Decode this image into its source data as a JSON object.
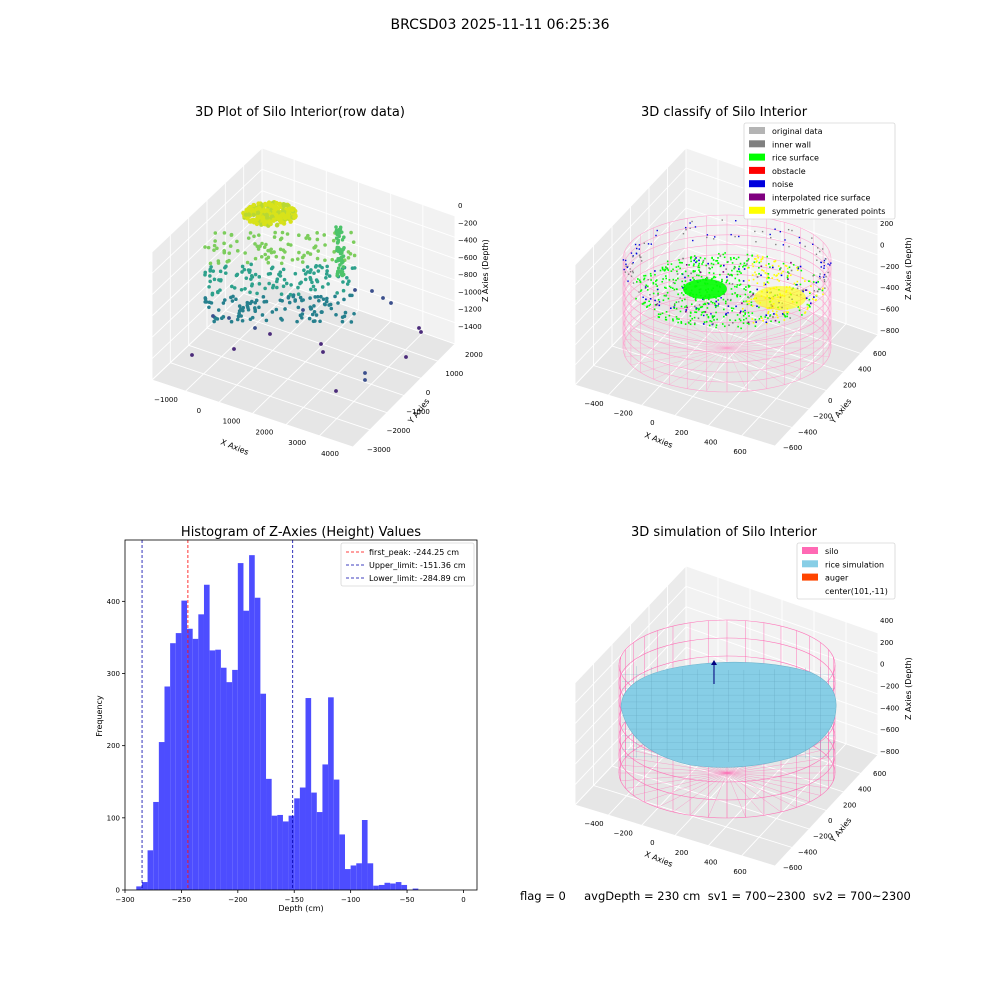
{
  "figure": {
    "suptitle": "BRCSD03 2025-11-11 06:25:36",
    "status": "flag = 0     avgDepth = 230 cm  sv1 = 700~2300  sv2 = 700~2300"
  },
  "chart_data": [
    {
      "type": "scatter",
      "title": "3D Plot of Silo Interior(row data)",
      "xlabel": "X Axies",
      "ylabel": "Y Axies",
      "zlabel": "Z Axies (Depth)",
      "x_ticks": [
        "−1000",
        "0",
        "1000",
        "2000",
        "3000",
        "4000"
      ],
      "y_ticks": [
        "−3000",
        "−2000",
        "−1000",
        "0",
        "1000",
        "2000"
      ],
      "z_ticks": [
        "−1400",
        "−1200",
        "−1000",
        "−800",
        "−600",
        "−400",
        "−200",
        "0"
      ],
      "colormap": "viridis",
      "colors": {
        "high": "#d8e21a",
        "mid": "#2ea18c",
        "low": "#3b4f8c",
        "outlier": "#4b2b7a"
      }
    },
    {
      "type": "scatter",
      "title": "3D classify of Silo Interior",
      "xlabel": "X Axies",
      "ylabel": "Y Axies",
      "zlabel": "Z Axies (Depth)",
      "x_ticks": [
        "−400",
        "−200",
        "0",
        "200",
        "400",
        "600"
      ],
      "y_ticks": [
        "−600",
        "−400",
        "−200",
        "0",
        "200",
        "400",
        "600"
      ],
      "z_ticks": [
        "−800",
        "−600",
        "−400",
        "−200",
        "0",
        "200"
      ],
      "legend": [
        {
          "label": "original data",
          "color": "#b4b4b4"
        },
        {
          "label": "inner wall",
          "color": "#808080"
        },
        {
          "label": "rice surface",
          "color": "#00ff00"
        },
        {
          "label": "obstacle",
          "color": "#ff0000"
        },
        {
          "label": "noise",
          "color": "#0000dd"
        },
        {
          "label": "interpolated rice surface",
          "color": "#800080"
        },
        {
          "label": "symmetric generated points",
          "color": "#ffff00"
        }
      ],
      "silo_color": "#ff9ccc"
    },
    {
      "type": "bar",
      "title": "Histogram of Z-Axies (Height) Values",
      "xlabel": "Depth (cm)",
      "ylabel": "Frequency",
      "xlim": [
        -300,
        12
      ],
      "ylim": [
        0,
        485
      ],
      "x_ticks": [
        -300,
        -250,
        -200,
        -150,
        -100,
        -50,
        0
      ],
      "y_ticks": [
        0,
        100,
        200,
        300,
        400
      ],
      "bin_start": -290,
      "bin_width": 5,
      "values": [
        5,
        11,
        55,
        122,
        205,
        282,
        342,
        356,
        401,
        362,
        348,
        382,
        423,
        332,
        333,
        308,
        288,
        305,
        453,
        387,
        464,
        405,
        272,
        154,
        103,
        104,
        95,
        103,
        127,
        142,
        266,
        135,
        108,
        174,
        267,
        153,
        77,
        29,
        34,
        37,
        97,
        37,
        6,
        7,
        10,
        9,
        11,
        7,
        0,
        2
      ],
      "bar_color": "#4d4dff",
      "vlines": [
        {
          "label": "first_peak: -244.25 cm",
          "value": -244.25,
          "color": "#ff0000"
        },
        {
          "label": "Upper_limit: -151.36 cm",
          "value": -151.36,
          "color": "#0000aa"
        },
        {
          "label": "Lower_limit: -284.89 cm",
          "value": -284.89,
          "color": "#0000aa"
        }
      ]
    },
    {
      "type": "surface",
      "title": "3D simulation of Silo Interior",
      "xlabel": "X Axies",
      "ylabel": "Y Axies",
      "zlabel": "Z Axies (Depth)",
      "x_ticks": [
        "−400",
        "−200",
        "0",
        "200",
        "400",
        "600"
      ],
      "y_ticks": [
        "−600",
        "−400",
        "−200",
        "0",
        "200",
        "400",
        "600"
      ],
      "z_ticks": [
        "−800",
        "−600",
        "−400",
        "−200",
        "0",
        "200",
        "400"
      ],
      "legend": [
        {
          "label": "silo",
          "color": "#ff69b4"
        },
        {
          "label": "rice simulation",
          "color": "#87cee6"
        },
        {
          "label": "auger",
          "color": "#ff4500"
        },
        {
          "label": "center(101,-11)",
          "color": null
        }
      ]
    }
  ]
}
